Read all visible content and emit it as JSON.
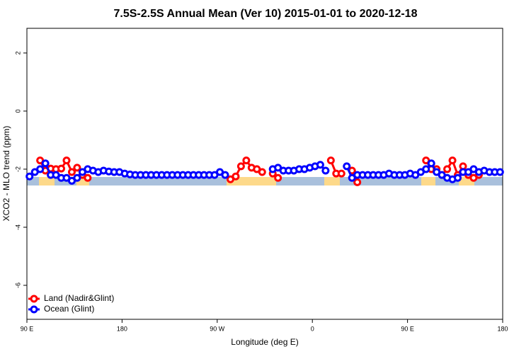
{
  "chart_data": {
    "type": "line",
    "title": "7.5S-2.5S Annual Mean (Ver 10)   2015-01-01 to 2020-12-18",
    "x_label": "Longitude (deg E)",
    "y_label": "XCO2 - MLO trend (ppm)",
    "xlim": [
      90,
      540
    ],
    "ylim": [
      -7.17,
      2.85
    ],
    "xticks": [
      {
        "value": 90,
        "label": "90 E"
      },
      180,
      {
        "value": 270,
        "label": "90 W"
      },
      {
        "value": 360,
        "label": "0"
      },
      {
        "value": 450,
        "label": "90 E"
      },
      {
        "value": 540,
        "label": "180"
      }
    ],
    "yticks": [
      2,
      0,
      -2,
      -4,
      -6
    ],
    "legend": "bottom-left",
    "x": [
      92.5,
      97.5,
      102.5,
      107.5,
      112.5,
      117.5,
      122.5,
      127.5,
      132.5,
      137.5,
      142.5,
      147.5,
      152.5,
      157.5,
      162.5,
      167.5,
      172.5,
      177.5,
      182.5,
      187.5,
      192.5,
      197.5,
      202.5,
      207.5,
      212.5,
      217.5,
      222.5,
      227.5,
      232.5,
      237.5,
      242.5,
      247.5,
      252.5,
      257.5,
      262.5,
      267.5,
      272.5,
      277.5,
      282.5,
      287.5,
      292.5,
      297.5,
      302.5,
      307.5,
      312.5,
      317.5,
      322.5,
      327.5,
      332.5,
      337.5,
      342.5,
      347.5,
      352.5,
      357.5,
      362.5,
      367.5,
      372.5,
      377.5,
      382.5,
      387.5,
      392.5,
      397.5,
      402.5,
      407.5,
      412.5,
      417.5,
      422.5,
      427.5,
      432.5,
      437.5,
      442.5,
      447.5,
      452.5,
      457.5,
      462.5,
      467.5,
      472.5,
      477.5,
      482.5,
      487.5,
      492.5,
      497.5,
      502.5,
      507.5,
      512.5,
      517.5,
      522.5,
      527.5,
      532.5,
      537.5
    ],
    "series": [
      {
        "name": "Land (Nadir&Glint)",
        "color": "#ff0000",
        "values": [
          null,
          null,
          -1.7,
          -2.05,
          -1.98,
          -2.0,
          -1.98,
          -1.7,
          -2.1,
          -1.95,
          -2.2,
          -2.3,
          null,
          null,
          null,
          null,
          null,
          null,
          null,
          null,
          null,
          null,
          null,
          null,
          null,
          null,
          null,
          null,
          null,
          null,
          null,
          null,
          null,
          null,
          null,
          null,
          null,
          null,
          -2.35,
          -2.25,
          -1.9,
          -1.7,
          -1.95,
          -2.0,
          -2.1,
          null,
          -2.15,
          -2.3,
          null,
          null,
          null,
          null,
          null,
          null,
          null,
          null,
          null,
          -1.7,
          -2.15,
          -2.15,
          null,
          -2.05,
          -2.45,
          null,
          null,
          null,
          null,
          null,
          null,
          null,
          null,
          null,
          null,
          null,
          null,
          -1.7,
          -2.0,
          -2.0,
          -2.2,
          -2.0,
          -1.7,
          -2.2,
          -1.9,
          -2.2,
          -2.3,
          -2.2,
          null,
          null,
          null,
          null
        ]
      },
      {
        "name": "Ocean (Glint)",
        "color": "#0000ff",
        "values": [
          -2.25,
          -2.1,
          -2.0,
          -1.8,
          -2.2,
          -2.2,
          -2.3,
          -2.3,
          -2.4,
          -2.3,
          -2.1,
          -2.0,
          -2.05,
          -2.1,
          -2.05,
          -2.08,
          -2.1,
          -2.1,
          -2.15,
          -2.18,
          -2.2,
          -2.2,
          -2.2,
          -2.2,
          -2.2,
          -2.2,
          -2.2,
          -2.2,
          -2.2,
          -2.2,
          -2.2,
          -2.2,
          -2.2,
          -2.2,
          -2.2,
          -2.2,
          -2.1,
          -2.2,
          null,
          null,
          null,
          null,
          null,
          null,
          null,
          null,
          -2.0,
          -1.95,
          -2.05,
          -2.05,
          -2.05,
          -2.0,
          -2.0,
          -1.95,
          -1.9,
          -1.85,
          -2.05,
          null,
          null,
          null,
          -1.9,
          -2.3,
          -2.2,
          -2.2,
          -2.2,
          -2.2,
          -2.2,
          -2.2,
          -2.15,
          -2.2,
          -2.2,
          -2.2,
          -2.15,
          -2.2,
          -2.1,
          -2.0,
          -1.8,
          -2.1,
          -2.2,
          -2.3,
          -2.35,
          -2.3,
          -2.1,
          -2.1,
          -2.0,
          -2.1,
          -2.05,
          -2.1,
          -2.1,
          -2.1
        ]
      }
    ]
  }
}
